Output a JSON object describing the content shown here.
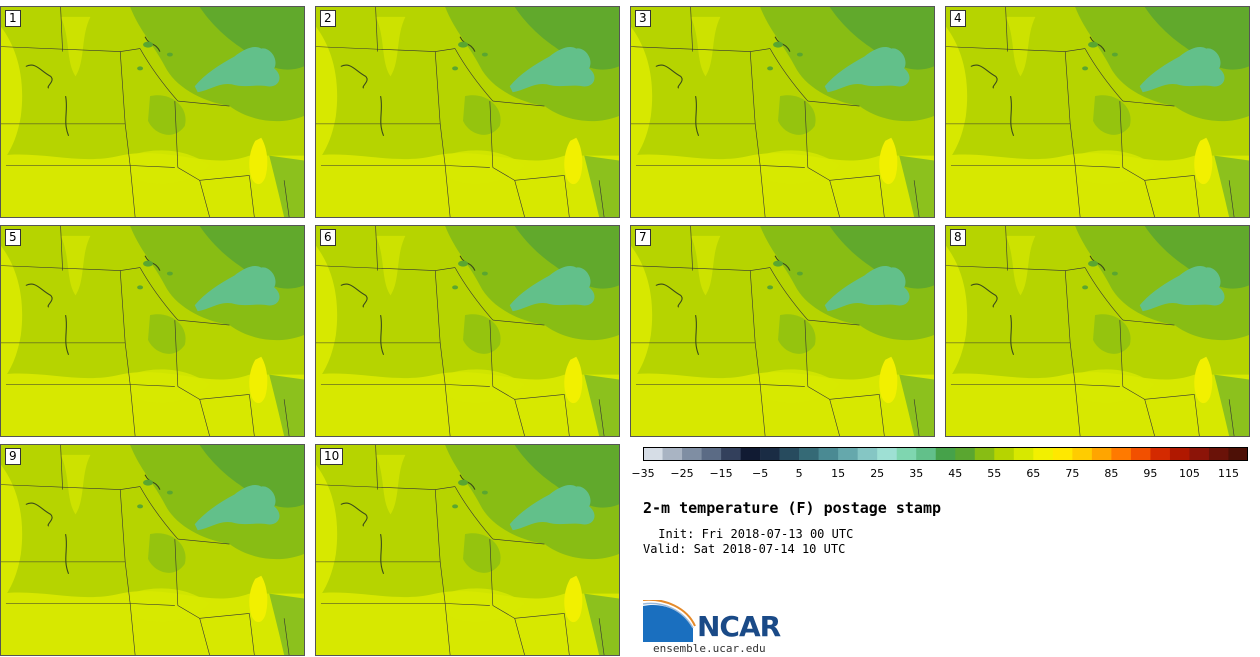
{
  "product": {
    "title": "2-m temperature (F) postage stamp",
    "init": " Init: Fri 2018-07-13 00 UTC",
    "valid": "Valid: Sat 2018-07-14 10 UTC"
  },
  "panels": [
    {
      "label": "1"
    },
    {
      "label": "2"
    },
    {
      "label": "3"
    },
    {
      "label": "4"
    },
    {
      "label": "5"
    },
    {
      "label": "6"
    },
    {
      "label": "7"
    },
    {
      "label": "8"
    },
    {
      "label": "9"
    },
    {
      "label": "10"
    }
  ],
  "colorbar": {
    "units": "F",
    "min": -35,
    "max": 120,
    "step": 5,
    "tick_labels": [
      "−35",
      "−25",
      "−15",
      "−5",
      "5",
      "15",
      "25",
      "35",
      "45",
      "55",
      "65",
      "75",
      "85",
      "95",
      "105",
      "115"
    ],
    "colors": [
      "#d6dde6",
      "#a9b4c3",
      "#7f8ea3",
      "#5b6b85",
      "#33405c",
      "#111b33",
      "#1a2c44",
      "#274b5e",
      "#356a76",
      "#4a8a93",
      "#65a8ac",
      "#85c6c4",
      "#9ee0d4",
      "#7fd6b0",
      "#62c08a",
      "#46a24a",
      "#5aa630",
      "#88bd14",
      "#b6d400",
      "#d7e800",
      "#f2f000",
      "#ffe800",
      "#ffcc00",
      "#ffa500",
      "#ff7a00",
      "#f25000",
      "#d42a00",
      "#b01800",
      "#8c1408",
      "#6a1208",
      "#4d1006"
    ]
  },
  "map_colors": {
    "warm": "#d7e800",
    "mid": "#b6d400",
    "cool": "#88bd14",
    "cooler": "#5aa630",
    "lake_superior": "#62c08a",
    "lake_michigan": "#f2f000",
    "border": "#333333"
  },
  "branding": {
    "logo_text": "NCAR",
    "site": "ensemble.ucar.edu"
  }
}
